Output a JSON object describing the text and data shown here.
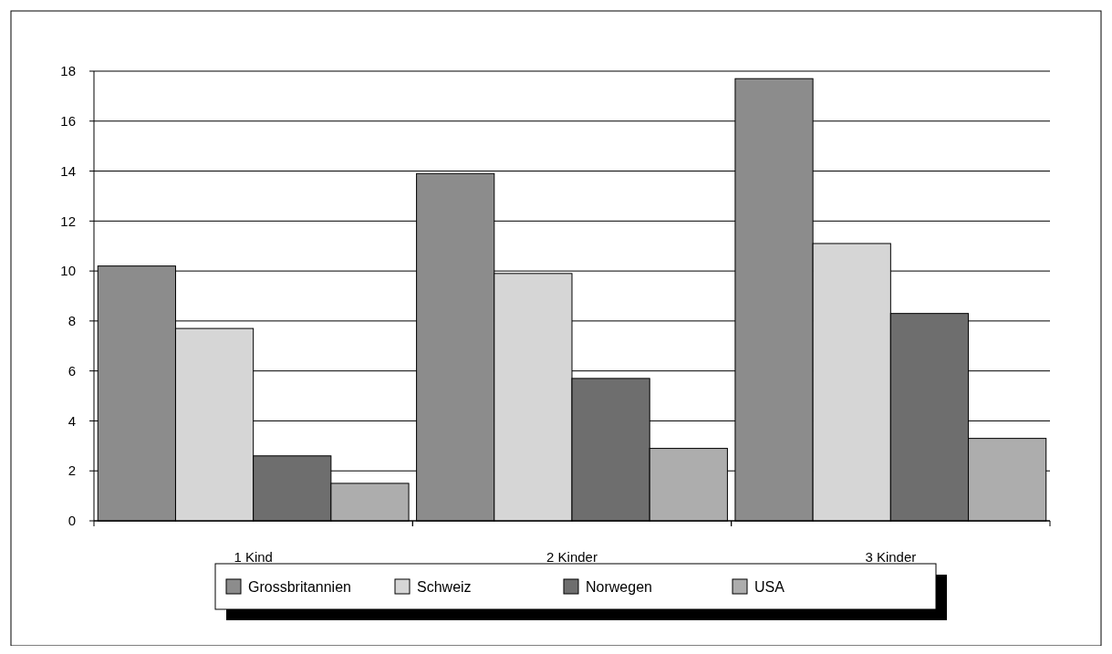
{
  "chart_data": {
    "type": "bar",
    "categories": [
      "1 Kind",
      "2 Kinder",
      "3 Kinder"
    ],
    "series": [
      {
        "name": "Grossbritannien",
        "color": "#8c8c8c",
        "values": [
          10.2,
          13.9,
          17.7
        ]
      },
      {
        "name": "Schweiz",
        "color": "#d6d6d6",
        "values": [
          7.7,
          9.9,
          11.1
        ]
      },
      {
        "name": "Norwegen",
        "color": "#6e6e6e",
        "values": [
          2.6,
          5.7,
          8.3
        ]
      },
      {
        "name": "USA",
        "color": "#adadad",
        "values": [
          1.5,
          2.9,
          3.3
        ]
      }
    ],
    "ylim": [
      0,
      18
    ],
    "yticks": [
      0,
      2,
      4,
      6,
      8,
      10,
      12,
      14,
      16,
      18
    ],
    "grid": "y",
    "legend": "bottom"
  }
}
